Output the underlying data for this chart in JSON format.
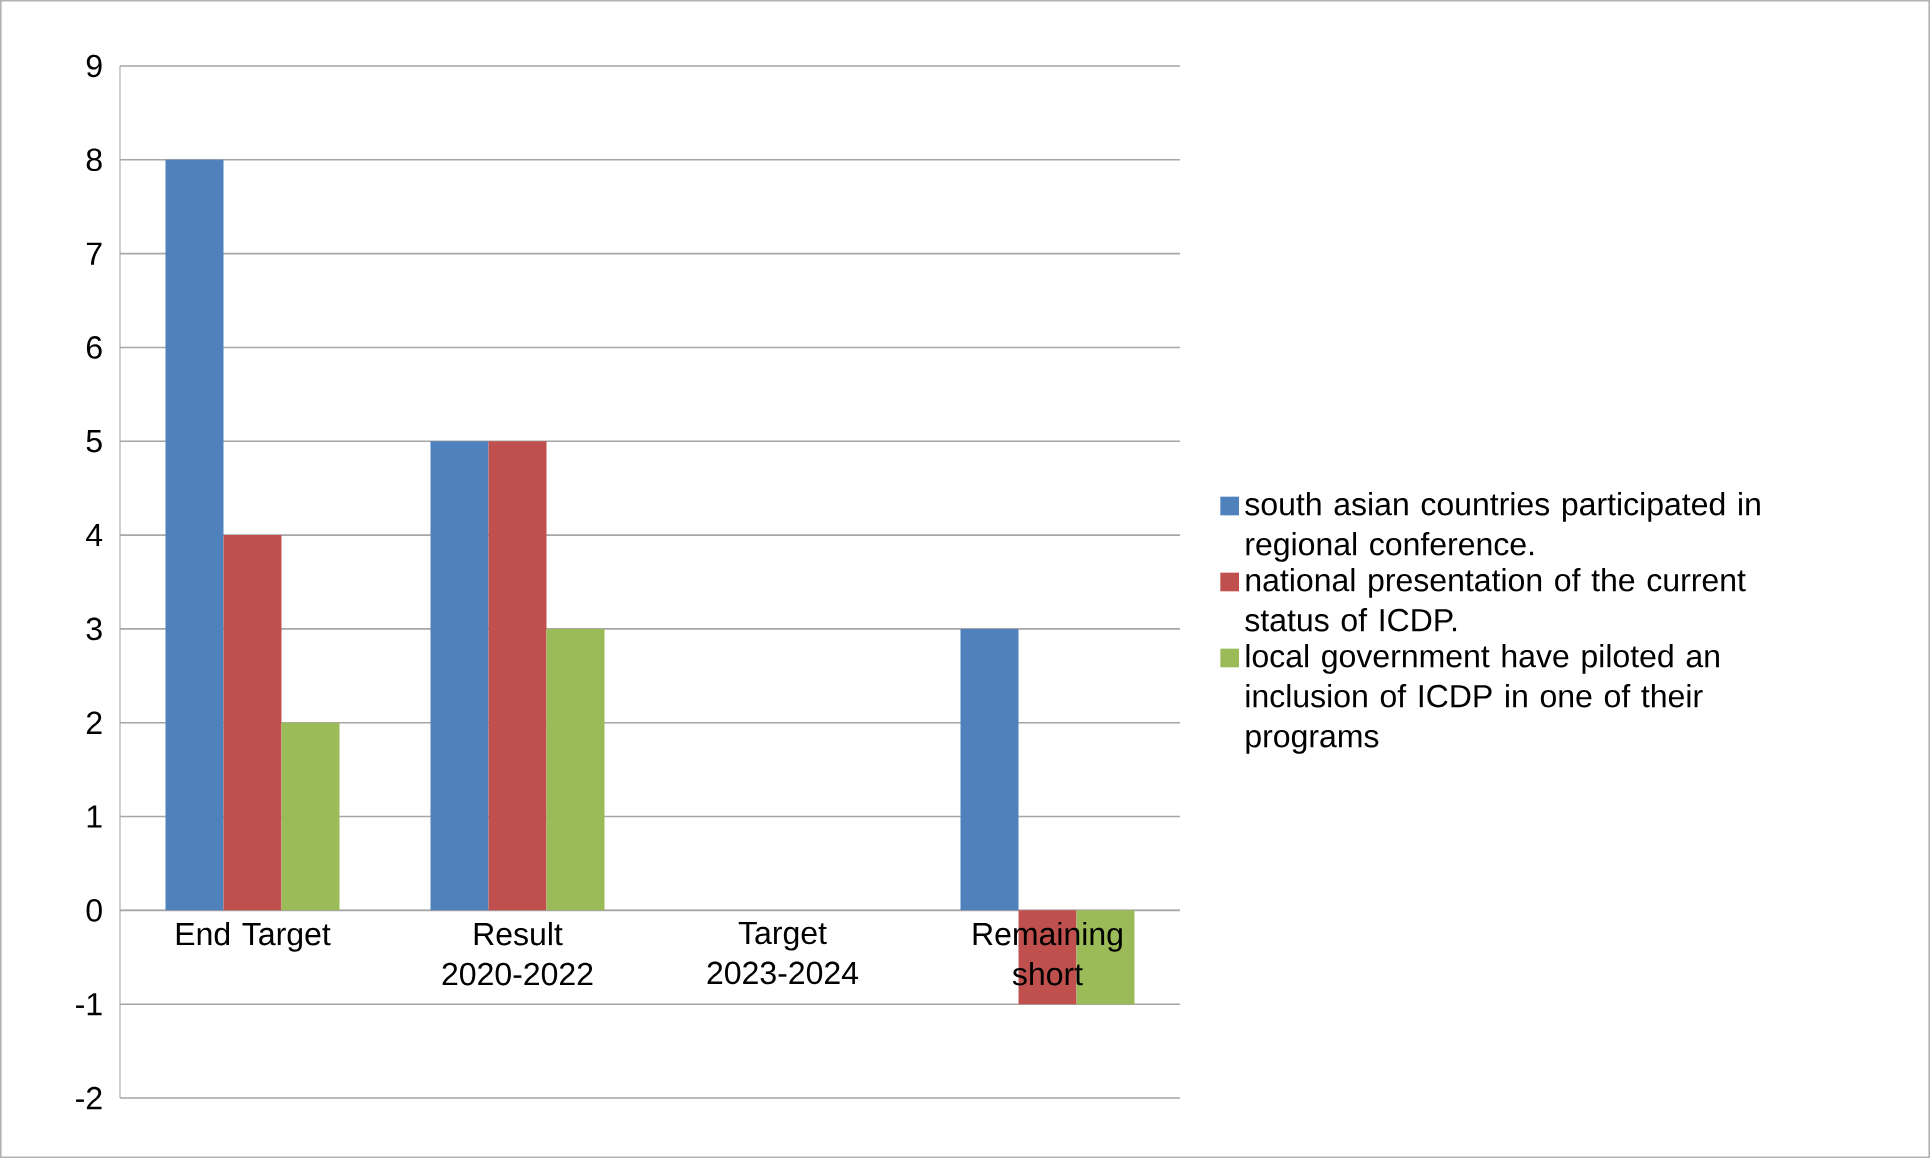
{
  "chart_data": {
    "type": "bar",
    "categories": [
      "End Target",
      "Result 2020-2022",
      "Target 2023-2024",
      "Remaining short"
    ],
    "series": [
      {
        "name": "south asian countries participated in regional conference.",
        "color": "#4f81bd",
        "values": [
          8,
          5,
          null,
          3
        ]
      },
      {
        "name": "national presentation of the current status of ICDP.",
        "color": "#c0504d",
        "values": [
          4,
          5,
          null,
          -1
        ]
      },
      {
        "name": "local government have piloted an inclusion of ICDP in one of their programs",
        "color": "#9bbb59",
        "values": [
          2,
          3,
          null,
          -1
        ]
      }
    ],
    "ylim": [
      -2,
      9
    ],
    "yticks": [
      -2,
      -1,
      0,
      1,
      2,
      3,
      4,
      5,
      6,
      7,
      8,
      9
    ],
    "grid": "y",
    "legend": "right"
  }
}
